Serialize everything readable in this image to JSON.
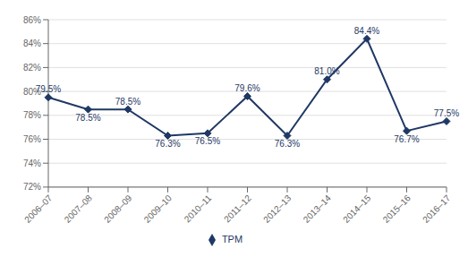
{
  "chart_data": {
    "type": "line",
    "categories": [
      "2006–07",
      "2007–08",
      "2008–09",
      "2009–10",
      "2010–11",
      "2011–12",
      "2012–13",
      "2013–14",
      "2014–15",
      "2015–16",
      "2016–17"
    ],
    "series": [
      {
        "name": "TPM",
        "color": "#1F3864",
        "marker": "diamond",
        "values": [
          79.5,
          78.5,
          78.5,
          76.3,
          76.5,
          79.6,
          76.3,
          81.0,
          84.4,
          76.7,
          77.5
        ],
        "value_labels": [
          "79.5%",
          "78.5%",
          "78.5%",
          "76.3%",
          "76.5%",
          "79.6%",
          "76.3%",
          "81.0%",
          "84.4%",
          "76.7%",
          "77.5%"
        ]
      }
    ],
    "ylim": [
      72,
      86
    ],
    "yticks": [
      {
        "value": 72,
        "label": "72%"
      },
      {
        "value": 74,
        "label": "74%"
      },
      {
        "value": 76,
        "label": "76%"
      },
      {
        "value": 78,
        "label": "78%"
      },
      {
        "value": 80,
        "label": "80%"
      },
      {
        "value": 82,
        "label": "82%"
      },
      {
        "value": 84,
        "label": "84%"
      },
      {
        "value": 86,
        "label": "86%"
      }
    ],
    "grid": true,
    "legend": "bottom",
    "data_labels": true
  }
}
